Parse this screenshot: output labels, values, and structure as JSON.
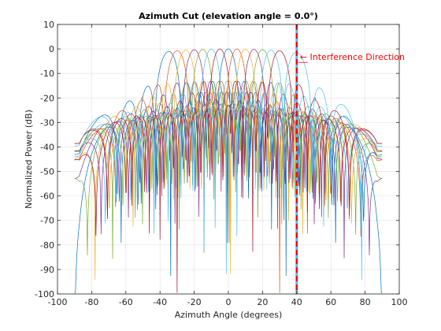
{
  "chart_data": {
    "type": "line",
    "title": "Azimuth Cut (elevation angle = 0.0°)",
    "xlabel": "Azimuth Angle (degrees)",
    "ylabel": "Normalized Power (dB)",
    "xlim": [
      -100,
      100
    ],
    "ylim": [
      -100,
      10
    ],
    "xticks": [
      -100,
      -80,
      -60,
      -40,
      -20,
      0,
      20,
      40,
      60,
      80,
      100
    ],
    "yticks": [
      10,
      0,
      -10,
      -20,
      -30,
      -40,
      -50,
      -60,
      -70,
      -80,
      -90,
      -100
    ],
    "grid": true,
    "x_range_data": [
      -90,
      90
    ],
    "series": [
      {
        "steer": -35,
        "color": "#0072BD",
        "sidelobe_db": -14
      },
      {
        "steer": -30,
        "color": "#D95319",
        "sidelobe_db": -16
      },
      {
        "steer": -25,
        "color": "#EDB120",
        "sidelobe_db": -15
      },
      {
        "steer": -20,
        "color": "#7E2F8E",
        "sidelobe_db": -17
      },
      {
        "steer": -15,
        "color": "#77AC30",
        "sidelobe_db": -15
      },
      {
        "steer": -10,
        "color": "#4DBEEE",
        "sidelobe_db": -16
      },
      {
        "steer": -5,
        "color": "#A2142F",
        "sidelobe_db": -14
      },
      {
        "steer": 0,
        "color": "#0072BD",
        "sidelobe_db": -17
      },
      {
        "steer": 5,
        "color": "#D95319",
        "sidelobe_db": -15
      },
      {
        "steer": 10,
        "color": "#EDB120",
        "sidelobe_db": -16
      },
      {
        "steer": 15,
        "color": "#7E2F8E",
        "sidelobe_db": -14
      },
      {
        "steer": 20,
        "color": "#77AC30",
        "sidelobe_db": -17
      },
      {
        "steer": 25,
        "color": "#4DBEEE",
        "sidelobe_db": -15
      },
      {
        "steer": 30,
        "color": "#A2142F",
        "sidelobe_db": -16
      },
      {
        "steer": 40,
        "color": "#4DBEEE",
        "sidelobe_db": -14
      }
    ],
    "interference": {
      "azimuth": 40,
      "label": "Interference Direction",
      "color": "#ff0000"
    }
  }
}
